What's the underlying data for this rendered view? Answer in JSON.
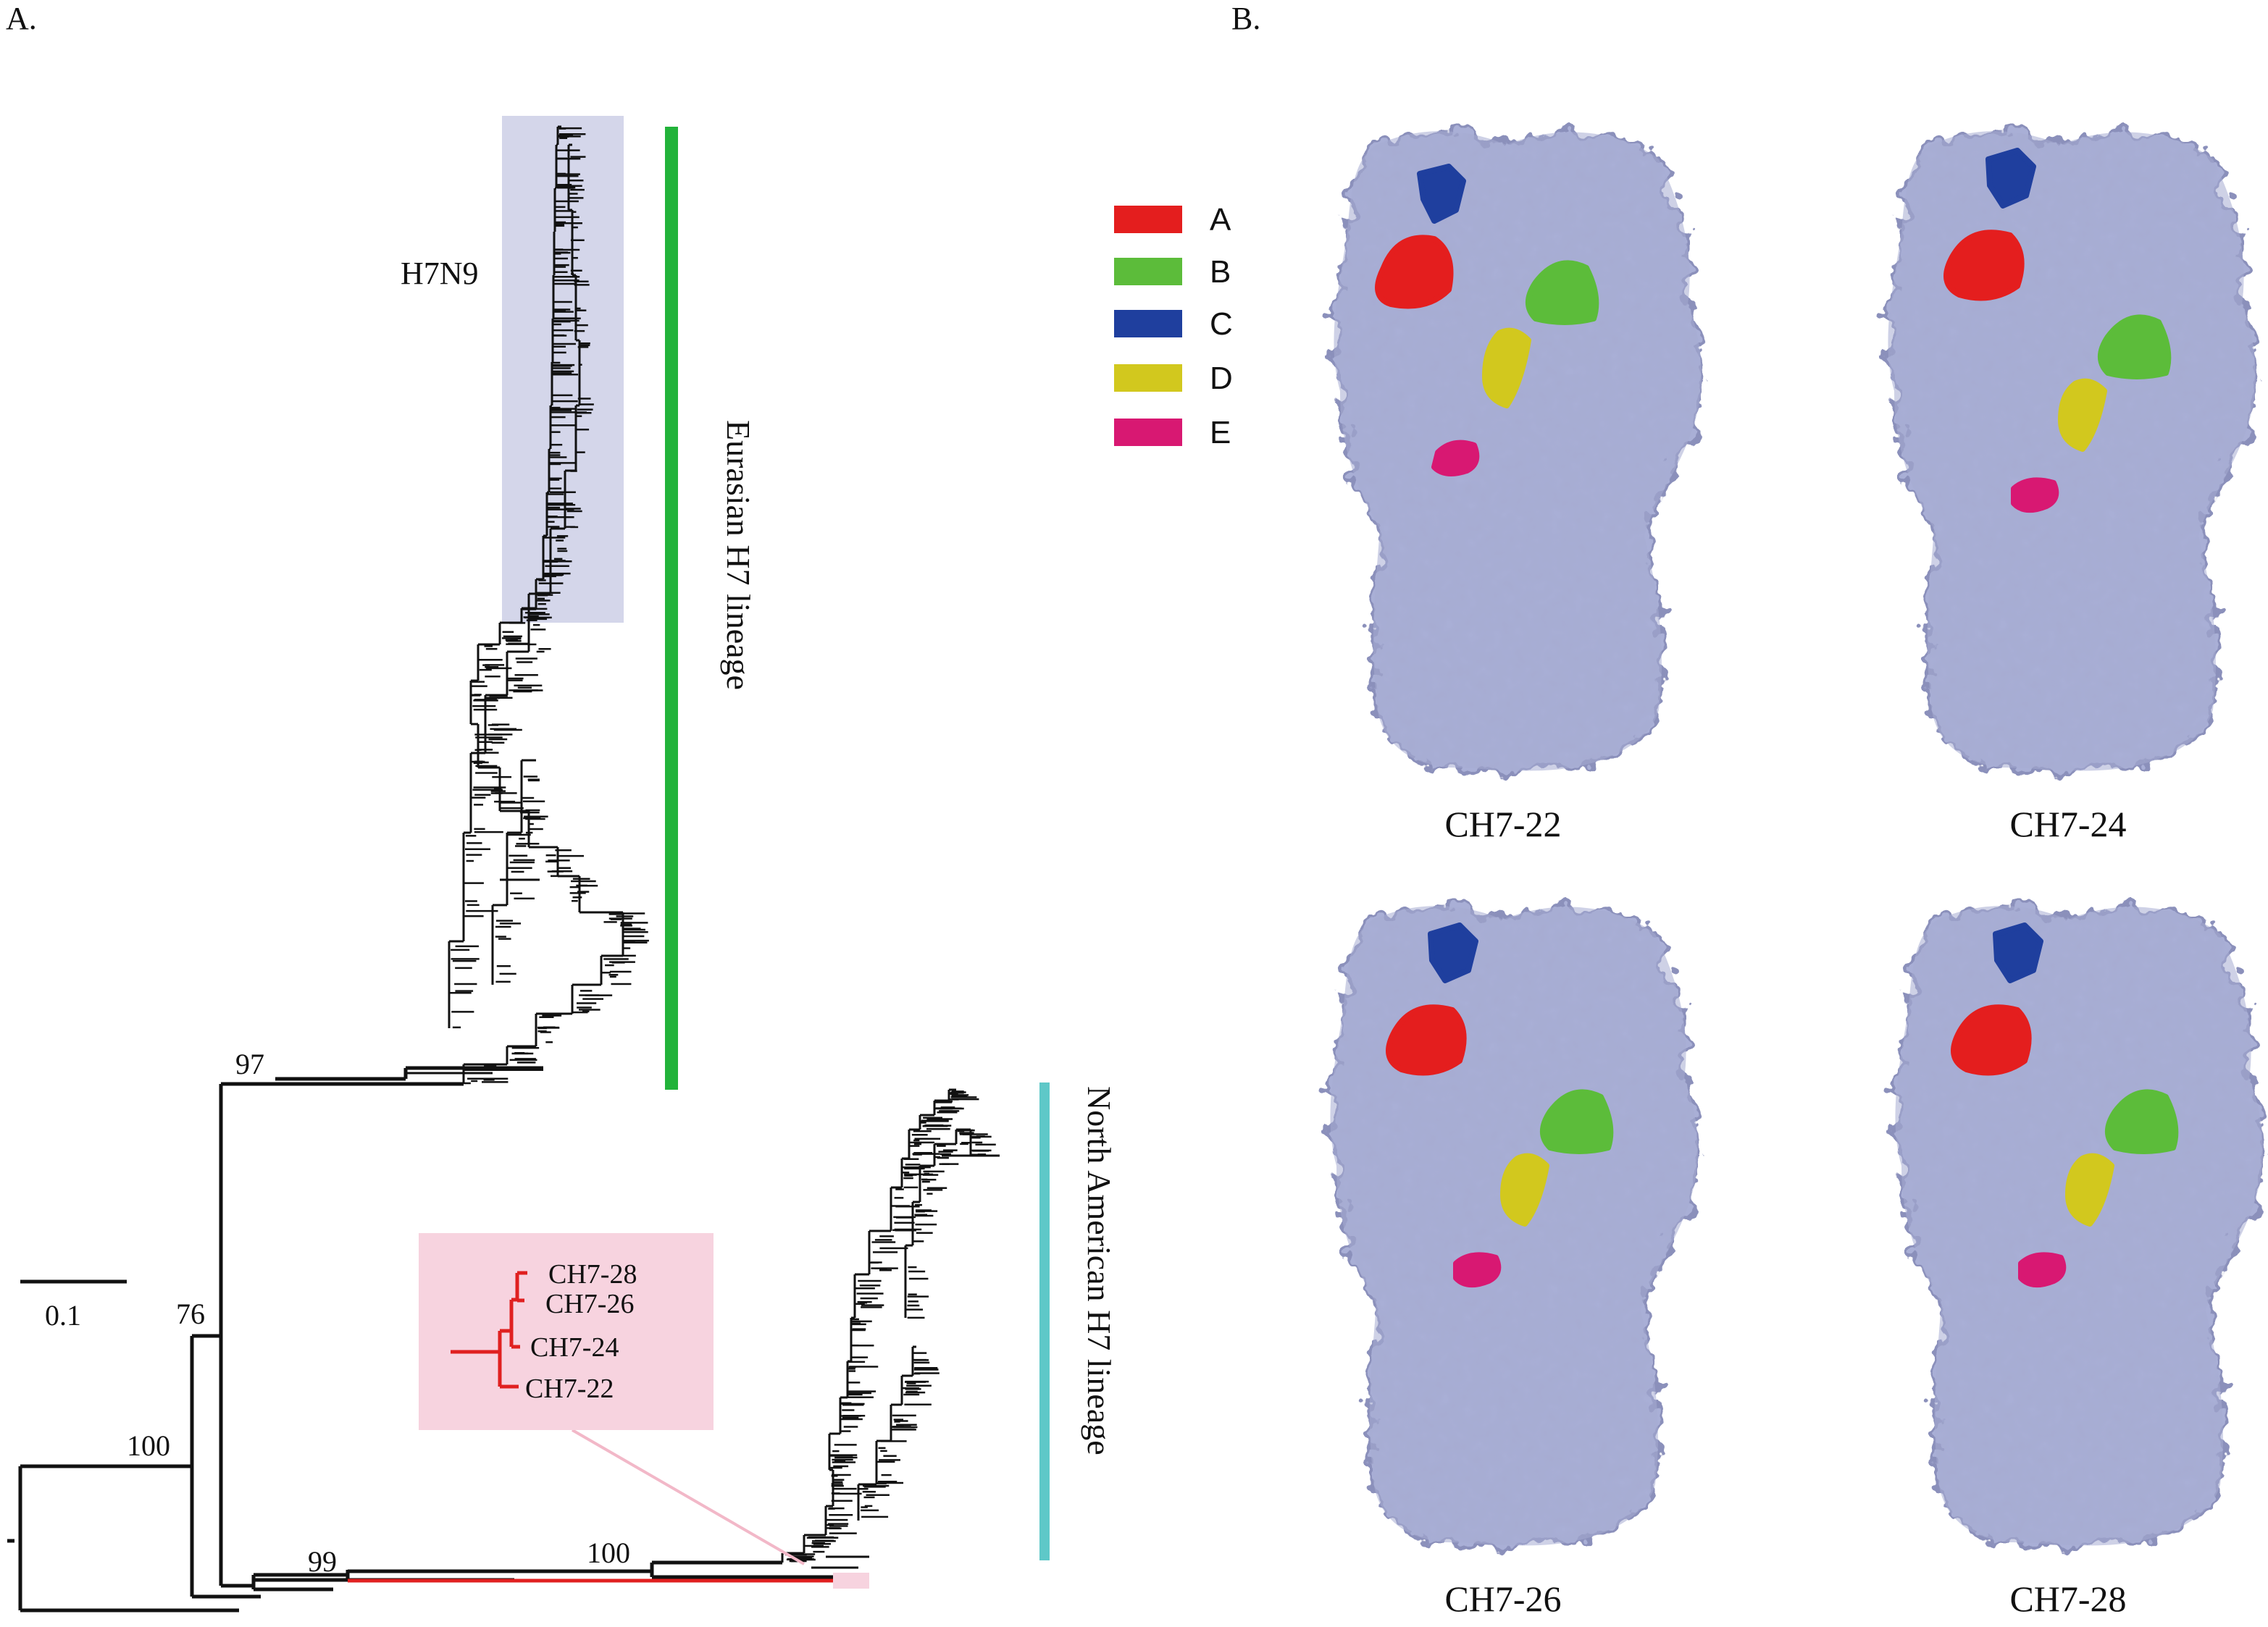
{
  "panel_a": {
    "label": "A.",
    "h7n9_label": "H7N9",
    "eurasian_label": "Eurasian H7 lineage",
    "north_american_label": "North American H7 lineage",
    "scale_label": "0.1",
    "bootstrap": [
      "97",
      "76",
      "100",
      "99",
      "100"
    ],
    "inset_labels": [
      "CH7-28",
      "CH7-26",
      "CH7-24",
      "CH7-22"
    ],
    "colors": {
      "eurasian": "#22b33a",
      "north_american": "#5ec8c8",
      "h7n9_box": "#d4d6ea",
      "inset_box": "#f7d3df",
      "highlight": "#e02020"
    }
  },
  "panel_b": {
    "label": "B.",
    "legend": [
      {
        "label": "A",
        "color": "#e41e1e"
      },
      {
        "label": "B",
        "color": "#5cbc3a"
      },
      {
        "label": "C",
        "color": "#1f3f9e"
      },
      {
        "label": "D",
        "color": "#d2c81e"
      },
      {
        "label": "E",
        "color": "#d81872"
      }
    ],
    "structures": [
      "CH7-22",
      "CH7-24",
      "CH7-26",
      "CH7-28"
    ],
    "surface_color": "#a9afd6"
  }
}
